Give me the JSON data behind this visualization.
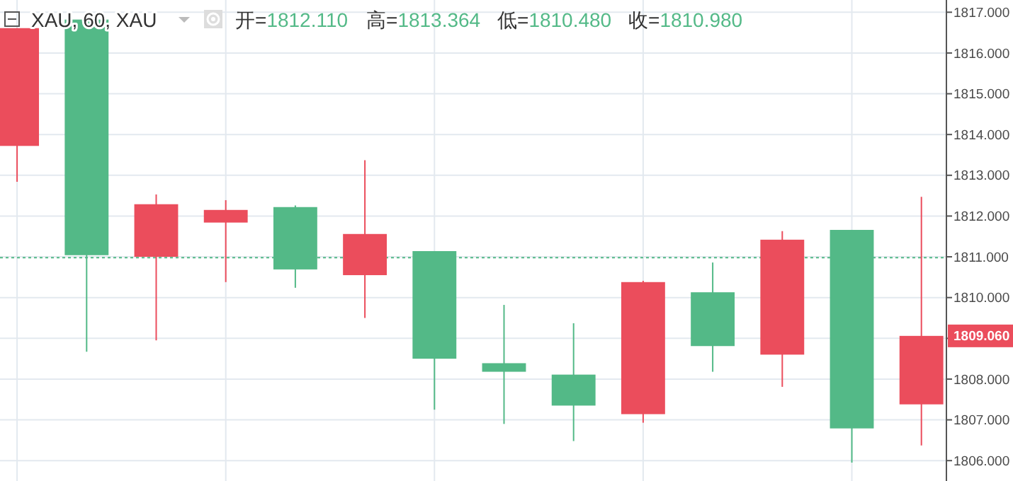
{
  "chart_data": {
    "type": "candlestick",
    "title": "XAU, 60, XAU",
    "annotations": [
      "开=1812.110",
      "高=1813.364",
      "低=1810.480",
      "收=1810.980",
      "1809.060"
    ],
    "categories": [
      null,
      null,
      null,
      null,
      null,
      null,
      null,
      null,
      null,
      null,
      null,
      null,
      null,
      null
    ],
    "ohlc": [
      [
        1813.72,
        1816.61,
        1812.84,
        1816.61
      ],
      [
        1816.82,
        1816.82,
        1808.67,
        1811.04
      ],
      [
        1811.0,
        1812.53,
        1808.95,
        1812.29
      ],
      [
        1811.84,
        1812.39,
        1810.38,
        1812.15
      ],
      [
        1812.22,
        1812.26,
        1810.24,
        1810.69
      ],
      [
        1810.55,
        1813.37,
        1809.5,
        1811.56
      ],
      [
        1811.14,
        1811.14,
        1807.25,
        1808.5
      ],
      [
        1808.39,
        1809.82,
        1806.9,
        1808.18
      ],
      [
        1808.11,
        1809.37,
        1806.48,
        1807.35
      ],
      [
        1807.14,
        1810.41,
        1806.93,
        1810.38
      ],
      [
        1810.13,
        1810.86,
        1808.18,
        1808.81
      ],
      [
        1808.6,
        1811.63,
        1807.81,
        1811.42
      ],
      [
        1811.66,
        1811.66,
        1805.95,
        1806.79
      ],
      [
        1807.38,
        1812.47,
        1806.37,
        1809.06
      ]
    ],
    "colors": [
      "#eb4d5c",
      "#53b987",
      "#eb4d5c",
      "#eb4d5c",
      "#53b987",
      "#eb4d5c",
      "#53b987",
      "#53b987",
      "#53b987",
      "#eb4d5c",
      "#53b987",
      "#eb4d5c",
      "#53b987",
      "#eb4d5c"
    ],
    "ylim": [
      1805.5,
      1817.3
    ],
    "yticks": [
      {
        "value": 1806,
        "label": "1806.000"
      },
      {
        "value": 1807,
        "label": "1807.000"
      },
      {
        "value": 1808,
        "label": "1808.000"
      },
      {
        "value": 1809,
        "label": null
      },
      {
        "value": 1810,
        "label": "1810.000"
      },
      {
        "value": 1811,
        "label": "1811.000"
      },
      {
        "value": 1812,
        "label": "1812.000"
      },
      {
        "value": 1813,
        "label": "1813.000"
      },
      {
        "value": 1814,
        "label": "1814.000"
      },
      {
        "value": 1815,
        "label": "1815.000"
      },
      {
        "value": 1816,
        "label": "1816.000"
      },
      {
        "value": 1817,
        "label": "1817.000"
      }
    ],
    "ref_lines": [
      {
        "axis": "y",
        "value": 1810.98,
        "color": "#53b987",
        "line_style": "dotted"
      }
    ],
    "grid": true
  }
}
